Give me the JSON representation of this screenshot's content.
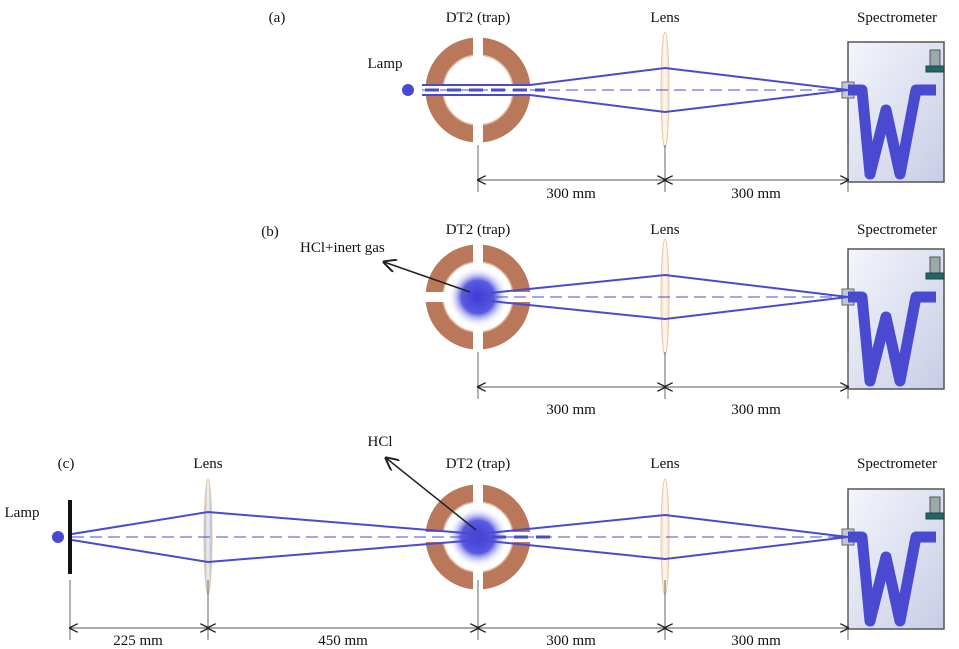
{
  "panels": [
    {
      "label": "(a)",
      "trap": "DT2 (trap)",
      "lens": "Lens",
      "spectrometer": "Spectrometer",
      "lamp": "Lamp",
      "dimensions": [
        "300 mm",
        "300 mm"
      ]
    },
    {
      "label": "(b)",
      "trap": "DT2 (trap)",
      "lens": "Lens",
      "spectrometer": "Spectrometer",
      "sample": "HCl+inert gas",
      "dimensions": [
        "300 mm",
        "300 mm"
      ]
    },
    {
      "label": "(c)",
      "first_lens": "Lens",
      "sample": "HCl",
      "trap": "DT2 (trap)",
      "lens": "Lens",
      "spectrometer": "Spectrometer",
      "lamp": "Lamp",
      "dimensions": [
        "225 mm",
        "450 mm",
        "300 mm",
        "300 mm"
      ]
    }
  ]
}
